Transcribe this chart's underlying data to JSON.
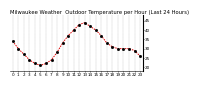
{
  "title": "Milwaukee Weather  Outdoor Temperature per Hour (Last 24 Hours)",
  "hours": [
    0,
    1,
    2,
    3,
    4,
    5,
    6,
    7,
    8,
    9,
    10,
    11,
    12,
    13,
    14,
    15,
    16,
    17,
    18,
    19,
    20,
    21,
    22,
    23
  ],
  "temps": [
    34,
    30,
    27,
    24,
    22,
    21,
    22,
    24,
    28,
    33,
    37,
    40,
    43,
    44,
    42,
    40,
    37,
    33,
    31,
    30,
    30,
    30,
    29,
    26
  ],
  "line_color": "#dd0000",
  "marker_color": "#000000",
  "bg_color": "#ffffff",
  "grid_color": "#888888",
  "ylim": [
    18,
    48
  ],
  "yticks": [
    20,
    25,
    30,
    35,
    40,
    45
  ],
  "title_fontsize": 3.8,
  "tick_fontsize": 3.0,
  "linewidth": 0.7,
  "markersize": 1.0
}
